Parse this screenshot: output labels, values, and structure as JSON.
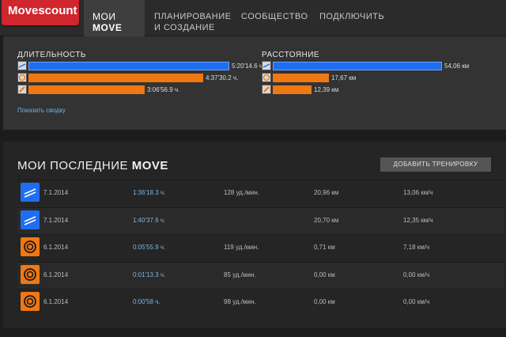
{
  "header": {
    "logo": "Movescount",
    "nav": {
      "my_moves_prefix": "МОИ",
      "my_moves_bold": "MOVE",
      "planning_line1": "ПЛАНИРОВАНИЕ",
      "planning_line2": "И СОЗДАНИЕ",
      "community": "СООБЩЕСТВО",
      "connect": "ПОДКЛЮЧИТЬ"
    }
  },
  "summary": {
    "duration_title": "ДЛИТЕЛЬНОСТЬ",
    "distance_title": "РАССТОЯНИЕ",
    "duration_rows": [
      {
        "icon": "running-icon",
        "value": "5:20'14.6 ч.",
        "fraction": 1.0,
        "color": "#1f6ef0"
      },
      {
        "icon": "circuit-icon",
        "value": "4:37'30.2 ч.",
        "fraction": 0.87,
        "color": "#f07812"
      },
      {
        "icon": "other-sport-icon",
        "value": "3:06'56.9 ч.",
        "fraction": 0.58,
        "color": "#f07812"
      }
    ],
    "distance_rows": [
      {
        "icon": "running-icon",
        "value": "54,06 км",
        "fraction": 1.0,
        "color": "#1f6ef0"
      },
      {
        "icon": "circuit-icon",
        "value": "17,67 км",
        "fraction": 0.33,
        "color": "#f07812"
      },
      {
        "icon": "other-sport-icon",
        "value": "12,39 км",
        "fraction": 0.23,
        "color": "#f07812"
      }
    ],
    "show_summary": "Показать сводку"
  },
  "moves": {
    "title_prefix": "МОИ ПОСЛЕДНИЕ",
    "title_bold": "MOVE",
    "add_button": "ДОБАВИТЬ ТРЕНИРОВКУ",
    "rows": [
      {
        "icon": "running-icon",
        "date": "7.1.2014",
        "duration": "1:36'18.3 ч.",
        "hr": "128 уд./мин.",
        "distance": "20,96 км",
        "speed": "13,06 км/ч"
      },
      {
        "icon": "running-icon",
        "date": "7.1.2014",
        "duration": "1:40'37.6 ч.",
        "hr": "",
        "distance": "20,70 км",
        "speed": "12,35 км/ч"
      },
      {
        "icon": "circuit-icon",
        "date": "6.1.2014",
        "duration": "0:05'55.9 ч.",
        "hr": "119 уд./мин.",
        "distance": "0,71 км",
        "speed": "7,18 км/ч"
      },
      {
        "icon": "circuit-icon",
        "date": "6.1.2014",
        "duration": "0:01'13.3 ч.",
        "hr": "85 уд./мин.",
        "distance": "0,00 км",
        "speed": "0,00 км/ч"
      },
      {
        "icon": "circuit-icon",
        "date": "6.1.2014",
        "duration": "0:00'58 ч.",
        "hr": "98 уд./мин.",
        "distance": "0,00 км",
        "speed": "0,00 км/ч"
      }
    ]
  }
}
